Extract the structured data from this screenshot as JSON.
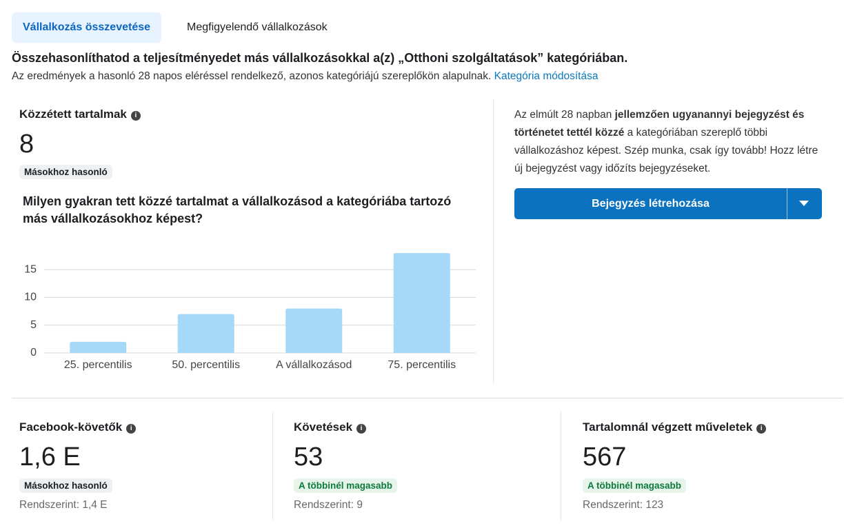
{
  "tabs": [
    "Vállalkozás összevetése",
    "Megfigyelendő vállalkozások"
  ],
  "header": {
    "title": "Összehasonlíthatod a teljesítményedet más vállalkozásokkal a(z) „Otthoni szolgáltatások” kategóriában.",
    "subtitle": "Az eredmények a hasonló 28 napos eléréssel rendelkező, azonos kategóriájú szereplőkön alapulnak.",
    "link": "Kategória módosítása"
  },
  "published": {
    "title": "Közzétett tartalmak",
    "value": "8",
    "badge": "Másokhoz hasonló",
    "question": "Milyen gyakran tett közzé tartalmat a vállalkozásod a kategóriába tartozó más vállalkozásokhoz képest?"
  },
  "chart_data": {
    "type": "bar",
    "categories": [
      "25. percentilis",
      "50. percentilis",
      "A vállalkozásod",
      "75. percentilis"
    ],
    "values": [
      2,
      7,
      8,
      18
    ],
    "color": "#a6d9f7",
    "ylim": [
      0,
      20
    ],
    "yticks": [
      0,
      5,
      10,
      15
    ],
    "grid": true
  },
  "summary": {
    "parts": [
      "Az elmúlt 28 napban ",
      "jellemzően ugyanannyi bejegyzést és történetet tettél közzé",
      " a kategóriában szereplő többi vállalkozáshoz képest. Szép munka, csak így tovább! Hozz létre új bejegyzést vagy időzíts bejegyzéseket."
    ],
    "button": "Bejegyzés létrehozása"
  },
  "metrics": [
    {
      "title": "Facebook-követők",
      "value": "1,6 E",
      "badge": "Másokhoz hasonló",
      "note": "Rendszerint: 1,4 E"
    },
    {
      "title": "Követések",
      "value": "53",
      "badge": "A többinél magasabb",
      "note": "Rendszerint: 9"
    },
    {
      "title": "Tartalomnál végzett műveletek",
      "value": "567",
      "badge": "A többinél magasabb",
      "note": "Rendszerint: 123"
    }
  ]
}
